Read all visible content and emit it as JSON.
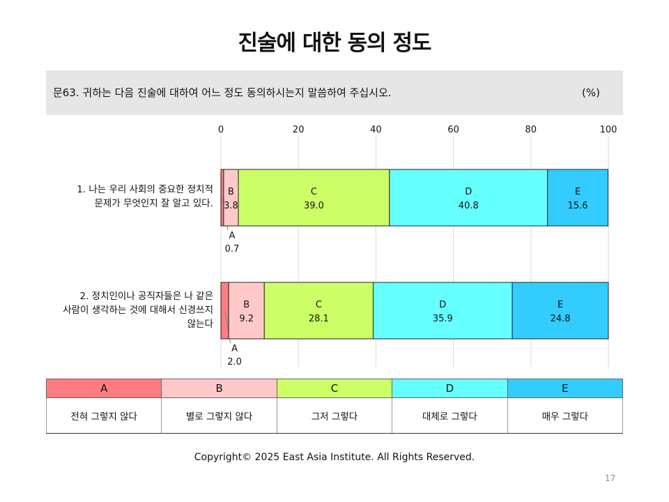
{
  "slide": {
    "title": "진술에 대한 동의 정도",
    "question": "문63. 귀하는 다음 진술에 대하여 어느 정도 동의하시는지 말씀하여 주십시오.",
    "unit": "(%)",
    "copyright": "Copyright© 2025 East Asia Institute. All Rights Reserved.",
    "page_number": "17"
  },
  "chart_data": {
    "type": "bar",
    "stacked": true,
    "orientation": "horizontal",
    "xlim": [
      0,
      100
    ],
    "xticks": [
      "0",
      "20",
      "40",
      "60",
      "80",
      "100"
    ],
    "grid": true,
    "categories": [
      [
        "1. 나는 우리 사회의 중요한 정치적",
        "문제가 무엇인지 잘 알고 있다."
      ],
      [
        "2. 정치인이나 공직자들은 나 같은",
        "사람이 생각하는 것에 대해서 신경쓰지",
        "않는다"
      ]
    ],
    "series": [
      {
        "name": "A",
        "color": "#ff7c80",
        "values": [
          0.7,
          2.0
        ],
        "labels": [
          "0.7",
          "2.0"
        ]
      },
      {
        "name": "B",
        "color": "#ffc9c9",
        "values": [
          3.8,
          9.2
        ],
        "labels": [
          "3.8",
          "9.2"
        ]
      },
      {
        "name": "C",
        "color": "#ccff66",
        "values": [
          39.0,
          28.1
        ],
        "labels": [
          "39.0",
          "28.1"
        ]
      },
      {
        "name": "D",
        "color": "#66ffff",
        "values": [
          40.8,
          35.9
        ],
        "labels": [
          "40.8",
          "35.9"
        ]
      },
      {
        "name": "E",
        "color": "#33ccff",
        "values": [
          15.6,
          24.8
        ],
        "labels": [
          "15.6",
          "24.8"
        ]
      }
    ]
  },
  "legend_table": {
    "headers": [
      "A",
      "B",
      "C",
      "D",
      "E"
    ],
    "descriptions": [
      "전혀 그렇지 않다",
      "별로 그렇지 않다",
      "그저 그렇다",
      "대체로 그렇다",
      "매우 그렇다"
    ],
    "colors": [
      "#ff7c80",
      "#ffc9c9",
      "#ccff66",
      "#66ffff",
      "#33ccff"
    ]
  }
}
